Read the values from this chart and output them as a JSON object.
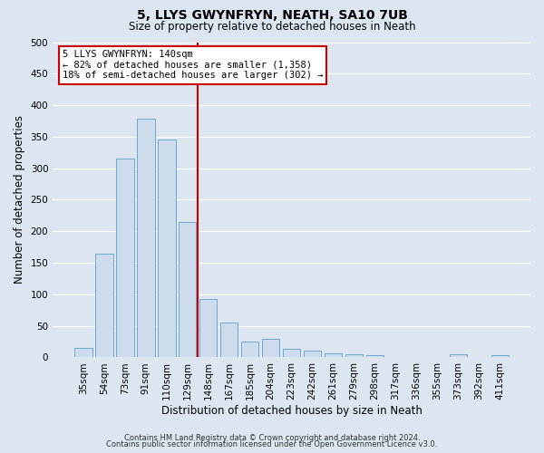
{
  "title": "5, LLYS GWYNFRYN, NEATH, SA10 7UB",
  "subtitle": "Size of property relative to detached houses in Neath",
  "xlabel": "Distribution of detached houses by size in Neath",
  "ylabel": "Number of detached properties",
  "categories": [
    "35sqm",
    "54sqm",
    "73sqm",
    "91sqm",
    "110sqm",
    "129sqm",
    "148sqm",
    "167sqm",
    "185sqm",
    "204sqm",
    "223sqm",
    "242sqm",
    "261sqm",
    "279sqm",
    "298sqm",
    "317sqm",
    "336sqm",
    "355sqm",
    "373sqm",
    "392sqm",
    "411sqm"
  ],
  "values": [
    15,
    165,
    315,
    378,
    345,
    215,
    93,
    55,
    25,
    29,
    14,
    10,
    7,
    5,
    4,
    1,
    0,
    0,
    5,
    0,
    3
  ],
  "bar_color": "#ccdcec",
  "bar_edge_color": "#6aaad4",
  "background_color": "#dde6f0",
  "grid_color": "#ffffff",
  "vline_x": 6.0,
  "vline_color": "#cc0000",
  "annotation_title": "5 LLYS GWYNFRYN: 140sqm",
  "annotation_line1": "← 82% of detached houses are smaller (1,358)",
  "annotation_line2": "18% of semi-detached houses are larger (302) →",
  "annotation_box_edgecolor": "#cc0000",
  "ylim": [
    0,
    500
  ],
  "yticks": [
    0,
    50,
    100,
    150,
    200,
    250,
    300,
    350,
    400,
    450,
    500
  ],
  "footer1": "Contains HM Land Registry data © Crown copyright and database right 2024.",
  "footer2": "Contains public sector information licensed under the Open Government Licence v3.0.",
  "title_fontsize": 10,
  "subtitle_fontsize": 8.5,
  "axis_label_fontsize": 8.5,
  "tick_fontsize": 7.5,
  "annotation_fontsize": 7.5,
  "footer_fontsize": 6.0
}
